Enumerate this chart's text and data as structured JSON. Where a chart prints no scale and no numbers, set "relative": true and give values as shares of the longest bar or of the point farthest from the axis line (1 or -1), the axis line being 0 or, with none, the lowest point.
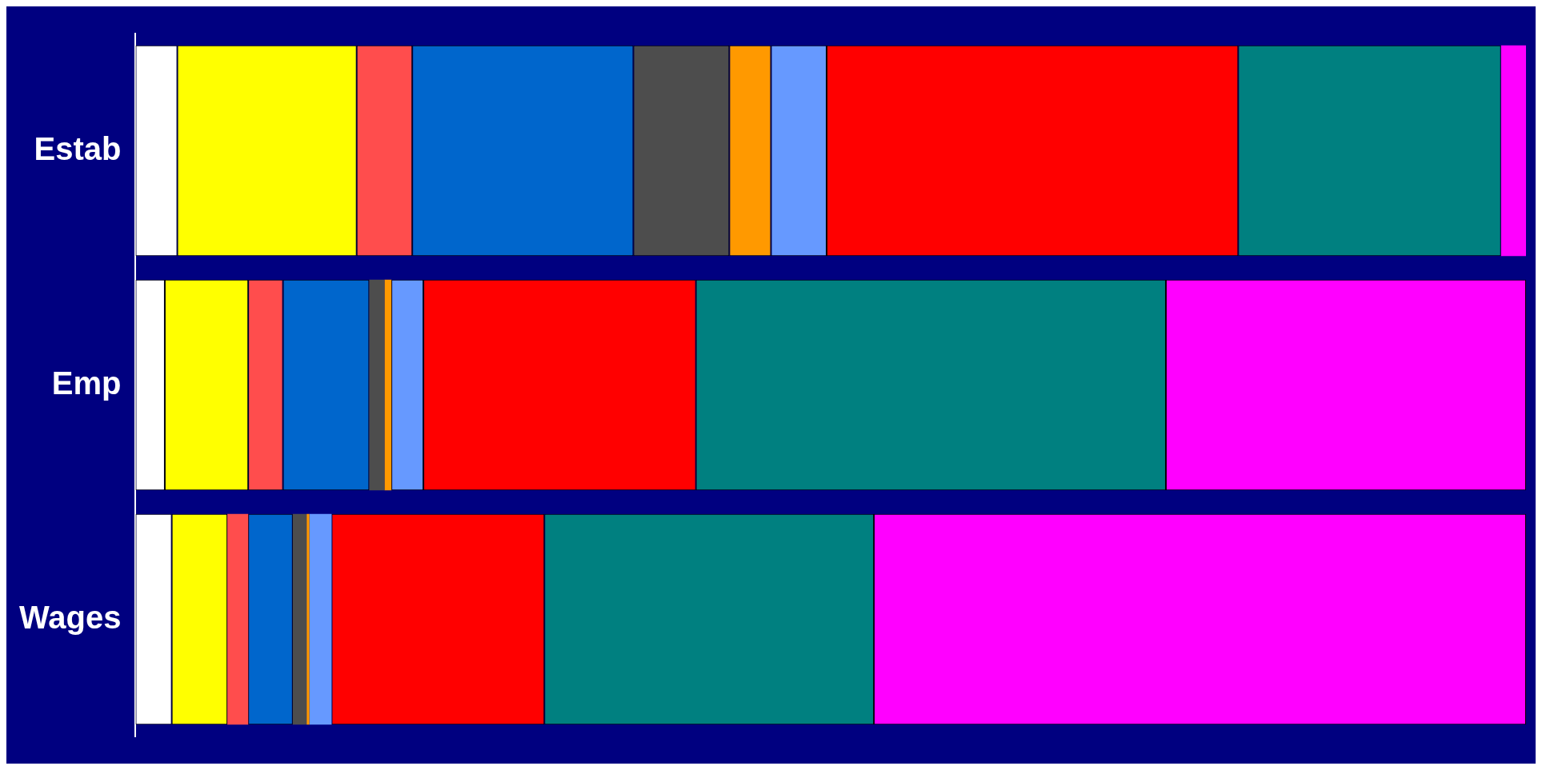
{
  "chart_data": {
    "type": "bar",
    "orientation": "horizontal",
    "stacked": true,
    "relative": true,
    "categories": [
      "Estab",
      "Emp",
      "Wages"
    ],
    "series": [
      {
        "color": "#ffffff",
        "values": [
          0.03,
          0.021,
          0.026
        ]
      },
      {
        "color": "#ffff00",
        "values": [
          0.129,
          0.06,
          0.04
        ]
      },
      {
        "color": "#ff4d4d",
        "values": [
          0.04,
          0.025,
          0.015
        ]
      },
      {
        "color": "#0066cc",
        "values": [
          0.159,
          0.062,
          0.032
        ]
      },
      {
        "color": "#4d4d4d",
        "values": [
          0.069,
          0.011,
          0.01
        ]
      },
      {
        "color": "#ff9900",
        "values": [
          0.03,
          0.005,
          0.002
        ]
      },
      {
        "color": "#6699ff",
        "values": [
          0.04,
          0.023,
          0.016
        ]
      },
      {
        "color": "#ff0000",
        "values": [
          0.296,
          0.196,
          0.153
        ]
      },
      {
        "color": "#008080",
        "values": [
          0.189,
          0.338,
          0.237
        ]
      },
      {
        "color": "#ff00ff",
        "values": [
          0.018,
          0.259,
          0.469
        ]
      }
    ]
  }
}
